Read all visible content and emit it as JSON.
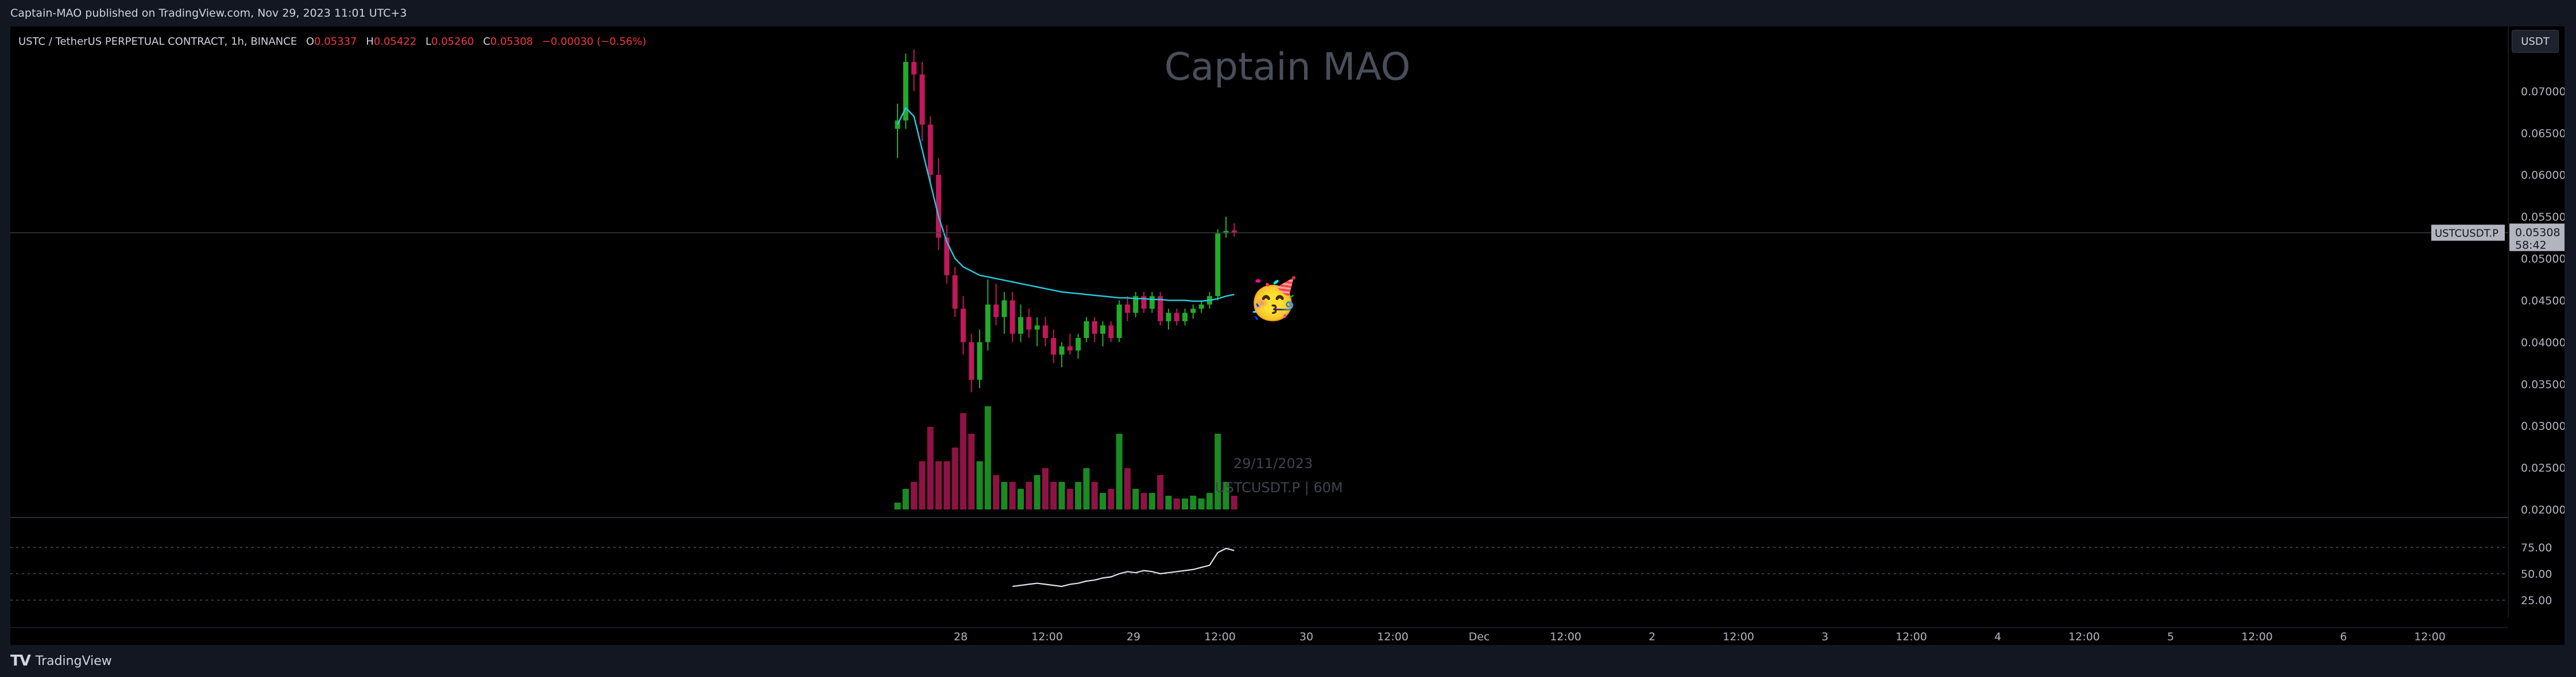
{
  "header": {
    "published_by": "Captain-MAO published on TradingView.com, Nov 29, 2023 11:01 UTC+3"
  },
  "legend": {
    "symbol": "USTC / TetherUS PERPETUAL CONTRACT, 1h, BINANCE",
    "o_label": "O",
    "o_value": "0.05337",
    "h_label": "H",
    "h_value": "0.05422",
    "l_label": "L",
    "l_value": "0.05260",
    "c_label": "C",
    "c_value": "0.05308",
    "change": "−0.00030 (−0.56%)"
  },
  "watermark": {
    "title": "Captain MAO",
    "date": "29/11/2023",
    "symbol_tf": "USTCUSDT.P | 60M"
  },
  "currency_button": "USDT",
  "price_scale": {
    "ticks": [
      "0.07000",
      "0.06500",
      "0.06000",
      "0.05500",
      "0.05000",
      "0.04500",
      "0.04000",
      "0.03500",
      "0.03000",
      "0.02500",
      "0.02000"
    ],
    "last_price_symbol": "USTCUSDT.P",
    "last_price": "0.05308",
    "countdown": "58:42"
  },
  "rsi_scale": {
    "ticks": [
      "75.00",
      "50.00",
      "25.00"
    ]
  },
  "time_axis": {
    "labels": [
      "28",
      "12:00",
      "29",
      "12:00",
      "30",
      "12:00",
      "Dec",
      "12:00",
      "2",
      "12:00",
      "3",
      "12:00",
      "4",
      "12:00",
      "5",
      "12:00",
      "6",
      "12:00"
    ]
  },
  "footer": {
    "brand": "TradingView"
  },
  "colors": {
    "up": "#22ab2a",
    "down": "#c2185b",
    "ma": "#26c6da",
    "rsi": "#e0e3eb",
    "background": "#000000"
  },
  "chart_data": {
    "type": "candlestick",
    "interval": "1h",
    "price_ylim": [
      0.02,
      0.075
    ],
    "candles": [
      {
        "o": 0.0655,
        "h": 0.0685,
        "l": 0.062,
        "c": 0.0665
      },
      {
        "o": 0.0665,
        "h": 0.0745,
        "l": 0.0655,
        "c": 0.0735
      },
      {
        "o": 0.0735,
        "h": 0.075,
        "l": 0.07,
        "c": 0.072
      },
      {
        "o": 0.072,
        "h": 0.0735,
        "l": 0.064,
        "c": 0.066
      },
      {
        "o": 0.066,
        "h": 0.067,
        "l": 0.059,
        "c": 0.06
      },
      {
        "o": 0.06,
        "h": 0.062,
        "l": 0.051,
        "c": 0.0525
      },
      {
        "o": 0.0525,
        "h": 0.054,
        "l": 0.047,
        "c": 0.048
      },
      {
        "o": 0.048,
        "h": 0.049,
        "l": 0.043,
        "c": 0.044
      },
      {
        "o": 0.044,
        "h": 0.0455,
        "l": 0.0385,
        "c": 0.04
      },
      {
        "o": 0.04,
        "h": 0.041,
        "l": 0.034,
        "c": 0.0355
      },
      {
        "o": 0.0355,
        "h": 0.0415,
        "l": 0.0345,
        "c": 0.04
      },
      {
        "o": 0.04,
        "h": 0.0475,
        "l": 0.039,
        "c": 0.0445
      },
      {
        "o": 0.0445,
        "h": 0.047,
        "l": 0.042,
        "c": 0.043
      },
      {
        "o": 0.043,
        "h": 0.046,
        "l": 0.041,
        "c": 0.045
      },
      {
        "o": 0.045,
        "h": 0.046,
        "l": 0.04,
        "c": 0.041
      },
      {
        "o": 0.041,
        "h": 0.0445,
        "l": 0.04,
        "c": 0.043
      },
      {
        "o": 0.043,
        "h": 0.044,
        "l": 0.0405,
        "c": 0.0415
      },
      {
        "o": 0.0415,
        "h": 0.043,
        "l": 0.0395,
        "c": 0.042
      },
      {
        "o": 0.042,
        "h": 0.043,
        "l": 0.0395,
        "c": 0.0405
      },
      {
        "o": 0.0405,
        "h": 0.0415,
        "l": 0.0375,
        "c": 0.0385
      },
      {
        "o": 0.0385,
        "h": 0.04,
        "l": 0.037,
        "c": 0.0395
      },
      {
        "o": 0.0395,
        "h": 0.041,
        "l": 0.0385,
        "c": 0.039
      },
      {
        "o": 0.039,
        "h": 0.041,
        "l": 0.038,
        "c": 0.0405
      },
      {
        "o": 0.0405,
        "h": 0.043,
        "l": 0.04,
        "c": 0.0425
      },
      {
        "o": 0.0425,
        "h": 0.043,
        "l": 0.04,
        "c": 0.041
      },
      {
        "o": 0.041,
        "h": 0.0425,
        "l": 0.0395,
        "c": 0.042
      },
      {
        "o": 0.042,
        "h": 0.0425,
        "l": 0.04,
        "c": 0.0405
      },
      {
        "o": 0.0405,
        "h": 0.045,
        "l": 0.04,
        "c": 0.0445
      },
      {
        "o": 0.0445,
        "h": 0.0455,
        "l": 0.0425,
        "c": 0.0435
      },
      {
        "o": 0.0435,
        "h": 0.046,
        "l": 0.043,
        "c": 0.0455
      },
      {
        "o": 0.0455,
        "h": 0.046,
        "l": 0.0435,
        "c": 0.044
      },
      {
        "o": 0.044,
        "h": 0.046,
        "l": 0.0435,
        "c": 0.0455
      },
      {
        "o": 0.0455,
        "h": 0.046,
        "l": 0.042,
        "c": 0.0425
      },
      {
        "o": 0.0425,
        "h": 0.044,
        "l": 0.0415,
        "c": 0.0435
      },
      {
        "o": 0.0435,
        "h": 0.044,
        "l": 0.042,
        "c": 0.0425
      },
      {
        "o": 0.0425,
        "h": 0.044,
        "l": 0.042,
        "c": 0.0435
      },
      {
        "o": 0.0435,
        "h": 0.0445,
        "l": 0.0428,
        "c": 0.044
      },
      {
        "o": 0.044,
        "h": 0.045,
        "l": 0.0435,
        "c": 0.0445
      },
      {
        "o": 0.0445,
        "h": 0.046,
        "l": 0.044,
        "c": 0.0455
      },
      {
        "o": 0.0455,
        "h": 0.0535,
        "l": 0.045,
        "c": 0.053
      },
      {
        "o": 0.053,
        "h": 0.055,
        "l": 0.0525,
        "c": 0.0533
      },
      {
        "o": 0.05337,
        "h": 0.05422,
        "l": 0.0526,
        "c": 0.05308
      }
    ],
    "volume": [
      0.05,
      0.15,
      0.2,
      0.35,
      0.6,
      0.35,
      0.35,
      0.45,
      0.7,
      0.55,
      0.35,
      0.75,
      0.25,
      0.2,
      0.2,
      0.15,
      0.2,
      0.25,
      0.3,
      0.2,
      0.2,
      0.15,
      0.2,
      0.3,
      0.2,
      0.12,
      0.15,
      0.55,
      0.3,
      0.15,
      0.12,
      0.12,
      0.25,
      0.1,
      0.08,
      0.08,
      0.1,
      0.08,
      0.12,
      0.55,
      0.2,
      0.1
    ],
    "ma": [
      0.066,
      0.068,
      0.067,
      0.063,
      0.059,
      0.055,
      0.052,
      0.05,
      0.049,
      0.0485,
      0.048,
      0.0478,
      0.0476,
      0.0474,
      0.0472,
      0.047,
      0.0468,
      0.0466,
      0.0464,
      0.0462,
      0.046,
      0.0459,
      0.0458,
      0.0457,
      0.0456,
      0.0455,
      0.0454,
      0.0453,
      0.0453,
      0.0452,
      0.0452,
      0.0451,
      0.0451,
      0.045,
      0.045,
      0.045,
      0.0449,
      0.0449,
      0.045,
      0.0452,
      0.0455,
      0.0457
    ],
    "rsi": [
      null,
      null,
      null,
      null,
      null,
      null,
      null,
      null,
      null,
      null,
      null,
      null,
      null,
      null,
      38,
      39,
      40,
      41,
      40,
      39,
      38,
      40,
      41,
      43,
      44,
      46,
      47,
      50,
      52,
      51,
      53,
      52,
      50,
      51,
      52,
      53,
      54,
      56,
      58,
      70,
      74,
      72
    ],
    "rsi_ylim": [
      0,
      100
    ]
  }
}
